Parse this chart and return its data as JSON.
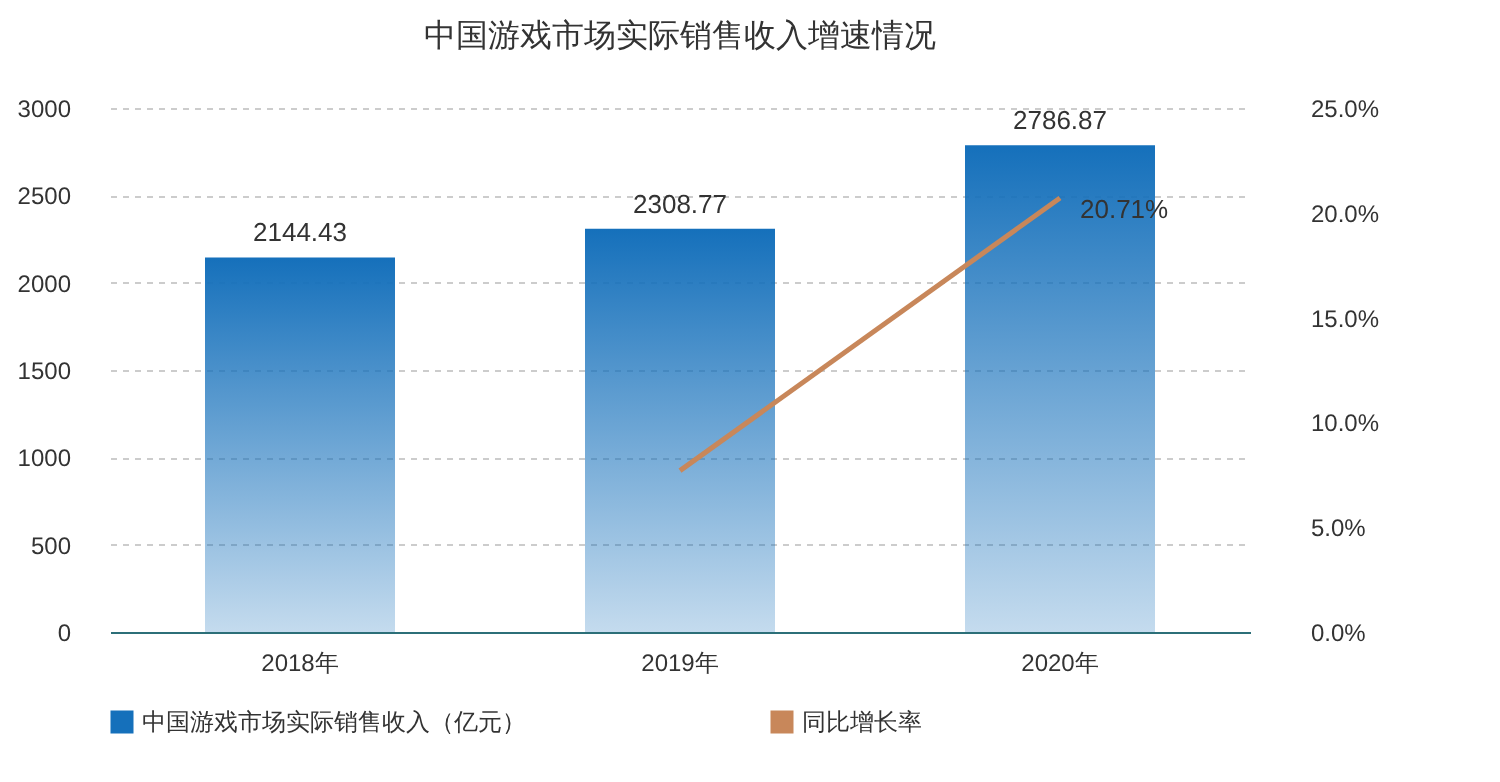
{
  "chart_data": {
    "type": "bar",
    "title": "中国游戏市场实际销售收入增速情况",
    "categories": [
      "2018年",
      "2019年",
      "2020年"
    ],
    "series": [
      {
        "name": "中国游戏市场实际销售收入（亿元）",
        "color": "#1570bb",
        "values": [
          2144.43,
          2308.77,
          2786.87
        ],
        "data_labels": true
      },
      {
        "name": "同比增长率",
        "type": "line",
        "axis": "y2",
        "color": "#c8875a",
        "values": [
          null,
          7.7,
          20.71
        ],
        "value_labels": [
          null,
          null,
          "20.71%"
        ]
      }
    ],
    "ylim": [
      0,
      3000
    ],
    "yticks": [
      0,
      500,
      1000,
      1500,
      2000,
      2500,
      3000
    ],
    "y2lim": [
      0,
      25
    ],
    "y2ticks": [
      {
        "value": 0,
        "label": "0.0%"
      },
      {
        "value": 5,
        "label": "5.0%"
      },
      {
        "value": 10,
        "label": "10.0%"
      },
      {
        "value": 15,
        "label": "15.0%"
      },
      {
        "value": 20,
        "label": "20.0%"
      },
      {
        "value": 25,
        "label": "25.0%"
      }
    ],
    "grid": "y",
    "legend": "bottom",
    "marker": "none",
    "line_style": "solid"
  }
}
